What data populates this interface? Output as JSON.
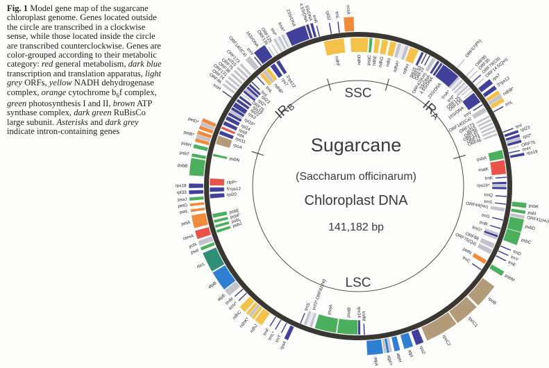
{
  "figure": {
    "caption_segments": [
      {
        "t": "Fig. 1",
        "b": 1
      },
      {
        "t": " Model gene map of the sugarcane chloroplast genome. Genes located outside the circle are transcribed in a clockwise sense, while those located inside the circle are transcribed counterclockwise. Genes are color-grouped according to their metabolic category: "
      },
      {
        "t": "red",
        "i": 1
      },
      {
        "t": " general metabolism, "
      },
      {
        "t": "dark blue",
        "i": 1
      },
      {
        "t": " transcription and translation apparatus, "
      },
      {
        "t": "light grey",
        "i": 1
      },
      {
        "t": " ORFs, "
      },
      {
        "t": "yellow",
        "i": 1
      },
      {
        "t": " NADH dehydrogenase complex, "
      },
      {
        "t": "orange",
        "i": 1
      },
      {
        "t": " cytochrome b"
      },
      {
        "t": "6",
        "sub": 1
      },
      {
        "t": "f complex, "
      },
      {
        "t": "green",
        "i": 1
      },
      {
        "t": " photosynthesis I and II, "
      },
      {
        "t": "brown",
        "i": 1
      },
      {
        "t": " ATP synthase complex, "
      },
      {
        "t": "dark green",
        "i": 1
      },
      {
        "t": " RuBisCo large subunit. "
      },
      {
        "t": "Asterisks",
        "i": 1
      },
      {
        "t": " and "
      },
      {
        "t": "dark grey",
        "i": 1
      },
      {
        "t": " indicate intron-containing genes"
      }
    ]
  },
  "center": {
    "title": "Sugarcane",
    "subtitle": "(Saccharum officinarum)",
    "line3": "Chloroplast DNA",
    "size": "141,182 bp"
  },
  "regions": [
    {
      "label": "SSC",
      "angle": 0,
      "r": 133,
      "rot": 0,
      "sub": ""
    },
    {
      "label": "IR",
      "sub": "A",
      "angle": 44,
      "r": 152,
      "rot": 42
    },
    {
      "label": "IR",
      "sub": "B",
      "angle": 316,
      "r": 152,
      "rot": -42
    },
    {
      "label": "LSC",
      "angle": 180,
      "r": 140,
      "rot": 0,
      "sub": ""
    }
  ],
  "junction_ticks": [
    16,
    74,
    288,
    344
  ],
  "palette": {
    "ring": "#3a3632",
    "inner": "#4a4a4a",
    "yellow": "#f2c24a",
    "lgrey": "#c3c3cd",
    "navy": "#41419b",
    "blue": "#2e7fd2",
    "green": "#4caf5e",
    "teal": "#2e8f74",
    "orange": "#f08a3c",
    "red": "#e8544a",
    "tan": "#b39b79",
    "stripe": "#e9e9f0"
  },
  "legend_meaning": {
    "red": "general metabolism",
    "navy": "transcription and translation",
    "lgrey": "ORFs",
    "yellow": "NADH dehydrogenase",
    "orange": "cytochrome b6f",
    "green": "photosynthesis I and II",
    "tan_blue": "ATP synthase",
    "teal": "RuBisCo large subunit"
  },
  "genes": [
    {
      "l": "ndhF",
      "a": 350.5,
      "w": 8,
      "s": "i",
      "c": "yellow"
    },
    {
      "l": "rpl32",
      "a": 350,
      "w": 0,
      "s": "o",
      "c": "navy"
    },
    {
      "l": "trnL",
      "a": 353,
      "w": 0,
      "s": "o",
      "c": "navy"
    },
    {
      "l": "ccsA",
      "a": 356.8,
      "w": 3.5,
      "s": "o",
      "c": "orange"
    },
    {
      "l": "ndhD",
      "a": 0.5,
      "w": 7,
      "s": "i",
      "c": "yellow"
    },
    {
      "l": "psaC",
      "a": 5,
      "w": 1.2,
      "s": "i",
      "c": "green"
    },
    {
      "l": "ndhE",
      "a": 7.5,
      "w": 2,
      "s": "i",
      "c": "yellow"
    },
    {
      "l": "ndhG",
      "a": 10.5,
      "w": 2.5,
      "s": "i",
      "c": "yellow"
    },
    {
      "l": "ndhI",
      "a": 13.8,
      "w": 2.5,
      "s": "i",
      "c": "yellow"
    },
    {
      "l": "ndhA*",
      "a": 17.8,
      "w": 4.5,
      "s": "i",
      "c": "lgrey",
      "c2": "stripe"
    },
    {
      "l": "ndhH",
      "a": 22.3,
      "w": 3.5,
      "s": "i",
      "c": "yellow"
    },
    {
      "l": "rps15",
      "a": 25.8,
      "w": 1,
      "s": "i",
      "c": "navy"
    },
    {
      "l": "ORF63",
      "a": 27.3,
      "w": 0,
      "s": "i",
      "c": "navy"
    },
    {
      "l": "ORF23",
      "a": 28.8,
      "w": 0,
      "s": "i",
      "c": "navy"
    },
    {
      "l": "ORF42(Km)",
      "a": 30.8,
      "w": 1.5,
      "s": "i",
      "c": "lgrey"
    },
    {
      "l": "5SrDNA",
      "a": 32.8,
      "w": 1,
      "s": "i",
      "c": "navy"
    },
    {
      "l": "4.5SrDNA",
      "a": 34.3,
      "w": 1,
      "s": "i",
      "c": "navy"
    },
    {
      "l": "23SrDNA",
      "a": 38.8,
      "w": 7.5,
      "s": "i",
      "c": "navy"
    },
    {
      "l": "trnA*",
      "a": 43.8,
      "w": 2.5,
      "s": "i",
      "c": "lgrey",
      "c2": "stripe"
    },
    {
      "l": "trnI*",
      "a": 46.8,
      "w": 2.5,
      "s": "i",
      "c": "lgrey",
      "c2": "stripe"
    },
    {
      "l": "ORF125",
      "a": 48.8,
      "w": 0,
      "s": "i",
      "c": "lgrey"
    },
    {
      "l": "ORF135",
      "a": 50.3,
      "w": 0,
      "s": "i",
      "c": "lgrey"
    },
    {
      "l": "16SrDNA",
      "a": 53.3,
      "w": 4.5,
      "s": "i",
      "c": "navy"
    },
    {
      "l": "trnV",
      "a": 56.8,
      "w": 0,
      "s": "i",
      "c": "navy"
    },
    {
      "l": "ORF140(Ca)",
      "a": 59,
      "w": 2,
      "s": "i",
      "c": "lgrey"
    },
    {
      "l": "ORF173",
      "a": 62,
      "w": 0.9,
      "s": "i",
      "c": "lgrey"
    },
    {
      "l": "ycf15",
      "a": 63.5,
      "w": 0.9,
      "s": "i",
      "c": "lgrey"
    },
    {
      "l": "ORF38",
      "a": 65,
      "w": 0.9,
      "s": "i",
      "c": "lgrey"
    },
    {
      "l": "ORF131",
      "a": 66.5,
      "w": 0.9,
      "s": "i",
      "c": "lgrey"
    },
    {
      "l": "ORF74",
      "a": 68,
      "w": 0.9,
      "s": "i",
      "c": "lgrey"
    },
    {
      "l": "ORF46",
      "a": 69.5,
      "w": 0.9,
      "s": "i",
      "c": "lgrey"
    },
    {
      "l": "ORF67(Ph)",
      "a": 40,
      "w": 0,
      "s": "o",
      "c": "lgrey"
    },
    {
      "l": "ORF85",
      "a": 44.5,
      "w": 0,
      "s": "o",
      "c": "lgrey"
    },
    {
      "l": "ORF35",
      "a": 46,
      "w": 0,
      "s": "o",
      "c": "lgrey"
    },
    {
      "l": "ORF79(Cb)",
      "a": 47.8,
      "w": 0,
      "s": "o",
      "c": "navy"
    },
    {
      "l": "ORF14.5(Qm)",
      "a": 49.5,
      "w": 0,
      "s": "o",
      "c": "lgrey"
    },
    {
      "l": "rps7",
      "a": 51.8,
      "w": 2,
      "s": "o",
      "c": "navy"
    },
    {
      "l": "3'rps12",
      "a": 54.3,
      "w": 1.5,
      "s": "o",
      "c": "navy"
    },
    {
      "l": "ndhB*",
      "a": 57.8,
      "w": 4.5,
      "s": "o",
      "c": "yellow",
      "c2": "lgrey"
    },
    {
      "l": "trnL",
      "a": 61.3,
      "w": 0,
      "s": "o",
      "c": "navy"
    },
    {
      "l": "trnI",
      "a": 69.6,
      "w": 0,
      "s": "o",
      "c": "navy"
    },
    {
      "l": "rpl23",
      "a": 71.1,
      "w": 1,
      "s": "o",
      "c": "navy"
    },
    {
      "l": "rpl2*",
      "a": 73.6,
      "w": 3,
      "s": "o",
      "c": "navy",
      "c2": "lgrey"
    },
    {
      "l": "ORF75",
      "a": 76.1,
      "w": 0,
      "s": "o",
      "c": "lgrey"
    },
    {
      "l": "trnH",
      "a": 77.6,
      "w": 0,
      "s": "o",
      "c": "navy"
    },
    {
      "l": "rps19",
      "a": 79.1,
      "w": 1,
      "s": "o",
      "c": "navy"
    },
    {
      "l": "psbA",
      "a": 77.6,
      "w": 3.5,
      "s": "i",
      "c": "green"
    },
    {
      "l": "matK",
      "a": 82.6,
      "w": 5.5,
      "s": "i",
      "c": "red"
    },
    {
      "l": "trnK",
      "a": 86.6,
      "w": 0,
      "s": "i",
      "c": "navy"
    },
    {
      "l": "rps16*",
      "a": 89.8,
      "w": 3,
      "s": "i",
      "c": "navy",
      "c2": "lgrey"
    },
    {
      "l": "trnQ",
      "a": 94,
      "w": 0,
      "s": "i",
      "c": "navy"
    },
    {
      "l": "trnS",
      "a": 97,
      "w": 0,
      "s": "i",
      "c": "navy"
    },
    {
      "l": "ORF44(Hv)",
      "a": 99.2,
      "w": 1.5,
      "s": "i",
      "c": "lgrey"
    },
    {
      "l": "psbK",
      "a": 96.6,
      "w": 1.8,
      "s": "o",
      "c": "green"
    },
    {
      "l": "psbI",
      "a": 98.9,
      "w": 1.2,
      "s": "o",
      "c": "green"
    },
    {
      "l": "ORF41(Hv)",
      "a": 100.6,
      "w": 1.2,
      "s": "o",
      "c": "lgrey"
    },
    {
      "l": "psbD",
      "a": 103.6,
      "w": 4.5,
      "s": "o",
      "c": "green"
    },
    {
      "l": "psbC",
      "a": 108.2,
      "w": 4.5,
      "s": "o",
      "c": "green"
    },
    {
      "l": "trnS",
      "a": 103.2,
      "w": 0,
      "s": "i",
      "c": "navy"
    },
    {
      "l": "trnR",
      "a": 106.6,
      "w": 0,
      "s": "i",
      "c": "navy"
    },
    {
      "l": "trnG*",
      "a": 109.8,
      "w": 2.8,
      "s": "i",
      "c": "lgrey",
      "c2": "navy"
    },
    {
      "l": "ORF88",
      "a": 113.8,
      "w": 2,
      "s": "i",
      "c": "lgrey"
    },
    {
      "l": "ORF75(Qa)",
      "a": 116.3,
      "w": 2,
      "s": "i",
      "c": "lgrey"
    },
    {
      "l": "trnD",
      "a": 112.8,
      "w": 0,
      "s": "o",
      "c": "navy"
    },
    {
      "l": "trnY",
      "a": 114.8,
      "w": 0,
      "s": "o",
      "c": "navy"
    },
    {
      "l": "trnE",
      "a": 116.8,
      "w": 0,
      "s": "o",
      "c": "navy"
    },
    {
      "l": "psbM",
      "a": 121.2,
      "w": 1.8,
      "s": "o",
      "c": "green"
    },
    {
      "l": "petN",
      "a": 120.8,
      "w": 1.8,
      "s": "i",
      "c": "orange"
    },
    {
      "l": "trnC",
      "a": 124.2,
      "w": 0,
      "s": "i",
      "c": "navy"
    },
    {
      "l": "rpoB",
      "a": 130.6,
      "w": 8.5,
      "s": "o",
      "c": "tan"
    },
    {
      "l": "rpoC1",
      "a": 139.8,
      "w": 8.5,
      "s": "o",
      "c": "tan"
    },
    {
      "l": "rpoC2",
      "a": 150.2,
      "w": 11.5,
      "s": "o",
      "c": "tan"
    },
    {
      "l": "rps2",
      "a": 158.6,
      "w": 2.8,
      "s": "o",
      "c": "navy"
    },
    {
      "l": "atpI",
      "a": 162.6,
      "w": 3.2,
      "s": "o",
      "c": "blue"
    },
    {
      "l": "atpH",
      "a": 166.6,
      "w": 2,
      "s": "o",
      "c": "blue"
    },
    {
      "l": "atpF*",
      "a": 169.8,
      "w": 2.8,
      "s": "o",
      "c": "lgrey",
      "c2": "blue"
    },
    {
      "l": "atpA",
      "a": 174.2,
      "w": 5.5,
      "s": "o",
      "c": "blue"
    },
    {
      "l": "trnfM",
      "a": 177.6,
      "w": 0,
      "s": "i",
      "c": "navy"
    },
    {
      "l": "rps14",
      "a": 179.6,
      "w": 1,
      "s": "i",
      "c": "navy"
    },
    {
      "l": "psaB",
      "a": 184.2,
      "w": 8,
      "s": "i",
      "c": "green"
    },
    {
      "l": "psaA",
      "a": 192.8,
      "w": 8.5,
      "s": "i",
      "c": "green"
    },
    {
      "l": "ycf3*-ORF82(Nt)",
      "a": 199.8,
      "w": 3.5,
      "s": "i",
      "c": "lgrey",
      "c2": "stripe"
    },
    {
      "l": "trnS",
      "a": 202.8,
      "w": 0,
      "s": "i",
      "c": "navy"
    },
    {
      "l": "rps4",
      "a": 205.2,
      "w": 1.5,
      "s": "o",
      "c": "navy"
    },
    {
      "l": "trnT",
      "a": 207.6,
      "w": 0,
      "s": "o",
      "c": "navy"
    },
    {
      "l": "trnL*",
      "a": 210,
      "w": 0,
      "s": "o",
      "c": "navy"
    },
    {
      "l": "trnF",
      "a": 212.2,
      "w": 0,
      "s": "o",
      "c": "navy"
    },
    {
      "l": "ndhJ",
      "a": 216.2,
      "w": 3,
      "s": "o",
      "c": "yellow"
    },
    {
      "l": "ndhK*",
      "a": 219.8,
      "w": 3.5,
      "s": "o",
      "c": "yellow",
      "c2": "lgrey"
    },
    {
      "l": "ndhC",
      "a": 223.2,
      "w": 2.5,
      "s": "o",
      "c": "yellow"
    },
    {
      "l": "trnV*",
      "a": 226.2,
      "w": 0,
      "s": "o",
      "c": "navy"
    },
    {
      "l": "trnM",
      "a": 228.2,
      "w": 0,
      "s": "o",
      "c": "navy"
    },
    {
      "l": "atpE",
      "a": 230.8,
      "w": 2.5,
      "s": "o",
      "c": "lgrey"
    },
    {
      "l": "atpB",
      "a": 235.8,
      "w": 7,
      "s": "o",
      "c": "blue"
    },
    {
      "l": "rbcL",
      "a": 243.2,
      "w": 7,
      "s": "o",
      "c": "teal"
    },
    {
      "l": "psaI",
      "a": 248.2,
      "w": 1.2,
      "s": "o",
      "c": "green"
    },
    {
      "l": "ycf4",
      "a": 250.2,
      "w": 1.8,
      "s": "o",
      "c": "lgrey"
    },
    {
      "l": "cemA",
      "a": 253.2,
      "w": 3,
      "s": "o",
      "c": "red"
    },
    {
      "l": "petA",
      "a": 257.8,
      "w": 4.5,
      "s": "o",
      "c": "orange"
    },
    {
      "l": "psbJ",
      "a": 252.2,
      "w": 1.2,
      "s": "i",
      "c": "green"
    },
    {
      "l": "psbL",
      "a": 254.2,
      "w": 1.2,
      "s": "i",
      "c": "green"
    },
    {
      "l": "psbF",
      "a": 256.2,
      "w": 1.2,
      "s": "i",
      "c": "green"
    },
    {
      "l": "psbE",
      "a": 258.4,
      "w": 1.6,
      "s": "i",
      "c": "green"
    },
    {
      "l": "petL",
      "a": 261.6,
      "w": 1,
      "s": "o",
      "c": "orange"
    },
    {
      "l": "petG",
      "a": 263.6,
      "w": 1,
      "s": "o",
      "c": "orange"
    },
    {
      "l": "psaJ",
      "a": 265.6,
      "w": 1.2,
      "s": "o",
      "c": "green"
    },
    {
      "l": "rpl33",
      "a": 267.9,
      "w": 1.4,
      "s": "o",
      "c": "navy"
    },
    {
      "l": "rps18",
      "a": 270.1,
      "w": 1.6,
      "s": "o",
      "c": "navy"
    },
    {
      "l": "rpl20",
      "a": 266.1,
      "w": 1.8,
      "s": "i",
      "c": "navy"
    },
    {
      "l": "5'rps12",
      "a": 268.6,
      "w": 1.8,
      "s": "i",
      "c": "navy"
    },
    {
      "l": "clpP*",
      "a": 271.6,
      "w": 2.8,
      "s": "i",
      "c": "red"
    },
    {
      "l": "psbB",
      "a": 276.6,
      "w": 6,
      "s": "o",
      "c": "green"
    },
    {
      "l": "psbT",
      "a": 280.6,
      "w": 1.2,
      "s": "o",
      "c": "green"
    },
    {
      "l": "psbN",
      "a": 282.1,
      "w": 1,
      "s": "i",
      "c": "green"
    },
    {
      "l": "psbH",
      "a": 283.7,
      "w": 1.4,
      "s": "o",
      "c": "green"
    },
    {
      "l": "petB*",
      "a": 287.2,
      "w": 4,
      "s": "o",
      "c": "orange",
      "c2": "lgrey"
    },
    {
      "l": "petD*",
      "a": 291.7,
      "w": 4,
      "s": "o",
      "c": "orange",
      "c2": "lgrey"
    },
    {
      "l": "rpoA",
      "a": 288.2,
      "w": 3.5,
      "s": "i",
      "c": "tan"
    },
    {
      "l": "rps11",
      "a": 291.2,
      "w": 1.6,
      "s": "i",
      "c": "navy"
    },
    {
      "l": "infA",
      "a": 293.2,
      "w": 1,
      "s": "i",
      "c": "red"
    },
    {
      "l": "rps8",
      "a": 295.2,
      "w": 1.6,
      "s": "i",
      "c": "navy"
    },
    {
      "l": "rpl14",
      "a": 297.4,
      "w": 1.6,
      "s": "i",
      "c": "navy"
    },
    {
      "l": "rpl16*",
      "a": 300.4,
      "w": 3.6,
      "s": "i",
      "c": "navy",
      "c2": "lgrey"
    },
    {
      "l": "rps3",
      "a": 303.4,
      "w": 2,
      "s": "i",
      "c": "navy"
    },
    {
      "l": "rpl22",
      "a": 305.4,
      "w": 1.2,
      "s": "i",
      "c": "navy"
    },
    {
      "l": "rps19",
      "a": 307,
      "w": 1,
      "s": "i",
      "c": "navy"
    },
    {
      "l": "ORF75",
      "a": 308.4,
      "w": 0,
      "s": "i",
      "c": "lgrey"
    },
    {
      "l": "rpl2*",
      "a": 310.7,
      "w": 3,
      "s": "i",
      "c": "navy",
      "c2": "lgrey"
    },
    {
      "l": "rpl23",
      "a": 313,
      "w": 1,
      "s": "i",
      "c": "navy"
    },
    {
      "l": "trnI",
      "a": 314.4,
      "w": 0,
      "s": "i",
      "c": "navy"
    },
    {
      "l": "trnH",
      "a": 305,
      "w": 0,
      "s": "o",
      "c": "navy"
    },
    {
      "l": "ORF46",
      "a": 307,
      "w": 0.9,
      "s": "o",
      "c": "lgrey"
    },
    {
      "l": "ORF74",
      "a": 308.5,
      "w": 0.9,
      "s": "o",
      "c": "lgrey"
    },
    {
      "l": "ORF131",
      "a": 310,
      "w": 0.9,
      "s": "o",
      "c": "lgrey"
    },
    {
      "l": "ORF38",
      "a": 311.5,
      "w": 0.9,
      "s": "o",
      "c": "lgrey"
    },
    {
      "l": "ORF75",
      "a": 313,
      "w": 0.9,
      "s": "o",
      "c": "lgrey"
    },
    {
      "l": "ycf15",
      "a": 314.5,
      "w": 0.9,
      "s": "o",
      "c": "lgrey"
    },
    {
      "l": "ORF173",
      "a": 316,
      "w": 0.9,
      "s": "o",
      "c": "lgrey"
    },
    {
      "l": "trnL",
      "a": 317.2,
      "w": 0,
      "s": "i",
      "c": "navy"
    },
    {
      "l": "ndhB*",
      "a": 320.7,
      "w": 4.5,
      "s": "i",
      "c": "yellow",
      "c2": "lgrey"
    },
    {
      "l": "rps7",
      "a": 324.7,
      "w": 2,
      "s": "i",
      "c": "navy"
    },
    {
      "l": "3'rps12",
      "a": 327.2,
      "w": 1.5,
      "s": "i",
      "c": "navy"
    },
    {
      "l": "ORF140(Ca)",
      "a": 319.2,
      "w": 2,
      "s": "o",
      "c": "lgrey"
    },
    {
      "l": "trnV",
      "a": 321.2,
      "w": 0,
      "s": "o",
      "c": "navy"
    },
    {
      "l": "16SrDNA",
      "a": 324.2,
      "w": 4.5,
      "s": "o",
      "c": "navy"
    },
    {
      "l": "ORF135",
      "a": 327.2,
      "w": 0,
      "s": "o",
      "c": "lgrey"
    },
    {
      "l": "ORF125",
      "a": 328.7,
      "w": 0,
      "s": "o",
      "c": "lgrey"
    },
    {
      "l": "trnI*",
      "a": 331.2,
      "w": 2.5,
      "s": "o",
      "c": "lgrey",
      "c2": "stripe"
    },
    {
      "l": "trnA*",
      "a": 334.2,
      "w": 2.5,
      "s": "o",
      "c": "lgrey",
      "c2": "stripe"
    },
    {
      "l": "23SrDNA",
      "a": 338.2,
      "w": 7,
      "s": "o",
      "c": "navy"
    },
    {
      "l": "4.5SrDNA",
      "a": 342.5,
      "w": 1,
      "s": "o",
      "c": "navy"
    },
    {
      "l": "5SrDNA",
      "a": 344,
      "w": 1,
      "s": "o",
      "c": "navy"
    },
    {
      "l": "trnR",
      "a": 345.5,
      "w": 0,
      "s": "o",
      "c": "navy"
    }
  ]
}
